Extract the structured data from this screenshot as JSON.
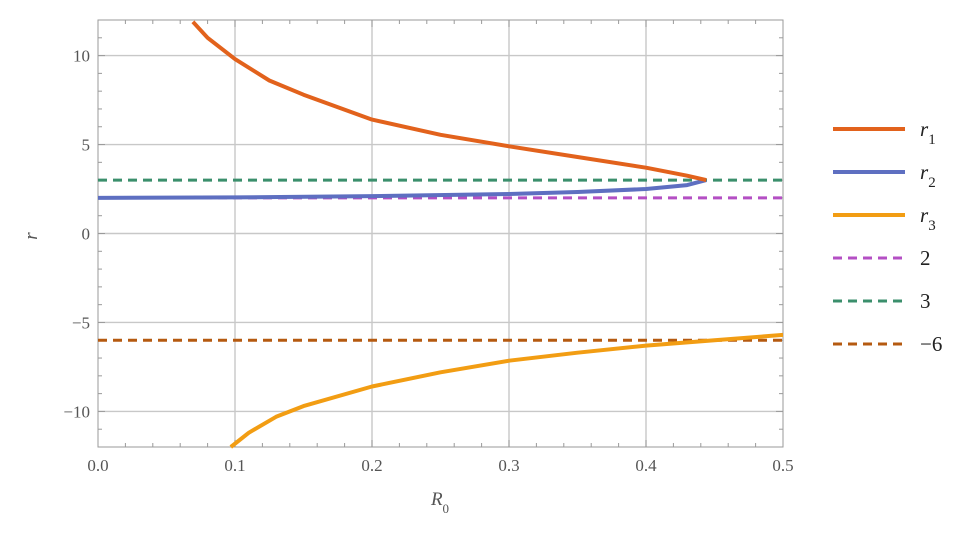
{
  "chart_data": {
    "type": "line",
    "title": "",
    "xlabel": "R",
    "xlabel_sub": "0",
    "ylabel": "r",
    "xlim": [
      0.0,
      0.5
    ],
    "ylim": [
      -12,
      12
    ],
    "grid": true,
    "legend_position": "right",
    "xticks": [
      0.0,
      0.1,
      0.2,
      0.3,
      0.4,
      0.5
    ],
    "xtick_labels": [
      "0.0",
      "0.1",
      "0.2",
      "0.3",
      "0.4",
      "0.5"
    ],
    "yticks": [
      10,
      5,
      0,
      -5,
      -10
    ],
    "ytick_labels": [
      "10",
      "5",
      "0",
      "−5",
      "−10"
    ],
    "series": [
      {
        "name": "r",
        "name_sub": "1",
        "color": "#e2621c",
        "style": "solid",
        "x": [
          0.0693,
          0.08,
          0.1,
          0.125,
          0.15,
          0.2,
          0.25,
          0.3,
          0.35,
          0.4,
          0.43,
          0.444
        ],
        "y": [
          11.9,
          11.0,
          9.8,
          8.6,
          7.8,
          6.4,
          5.55,
          4.9,
          4.3,
          3.7,
          3.25,
          3.0
        ]
      },
      {
        "name": "r",
        "name_sub": "2",
        "color": "#5e6fc1",
        "style": "solid",
        "x": [
          0.0,
          0.1,
          0.2,
          0.3,
          0.35,
          0.4,
          0.43,
          0.444
        ],
        "y": [
          2.0,
          2.03,
          2.1,
          2.22,
          2.33,
          2.5,
          2.72,
          3.0
        ]
      },
      {
        "name": "r",
        "name_sub": "3",
        "color": "#f29d13",
        "style": "solid",
        "x": [
          0.0969,
          0.11,
          0.13,
          0.15,
          0.2,
          0.25,
          0.3,
          0.35,
          0.4,
          0.45,
          0.5
        ],
        "y": [
          -12.0,
          -11.2,
          -10.3,
          -9.7,
          -8.6,
          -7.8,
          -7.15,
          -6.7,
          -6.3,
          -6.0,
          -5.7
        ]
      },
      {
        "name": "2",
        "color": "#b44fc4",
        "style": "dashed",
        "x": [
          0.0,
          0.5
        ],
        "y": [
          2,
          2
        ]
      },
      {
        "name": "3",
        "color": "#3b8f6c",
        "style": "dashed",
        "x": [
          0.0,
          0.5
        ],
        "y": [
          3,
          3
        ]
      },
      {
        "name": "−6",
        "color": "#b55a10",
        "style": "dashed",
        "x": [
          0.0,
          0.5
        ],
        "y": [
          -6,
          -6
        ]
      }
    ]
  }
}
